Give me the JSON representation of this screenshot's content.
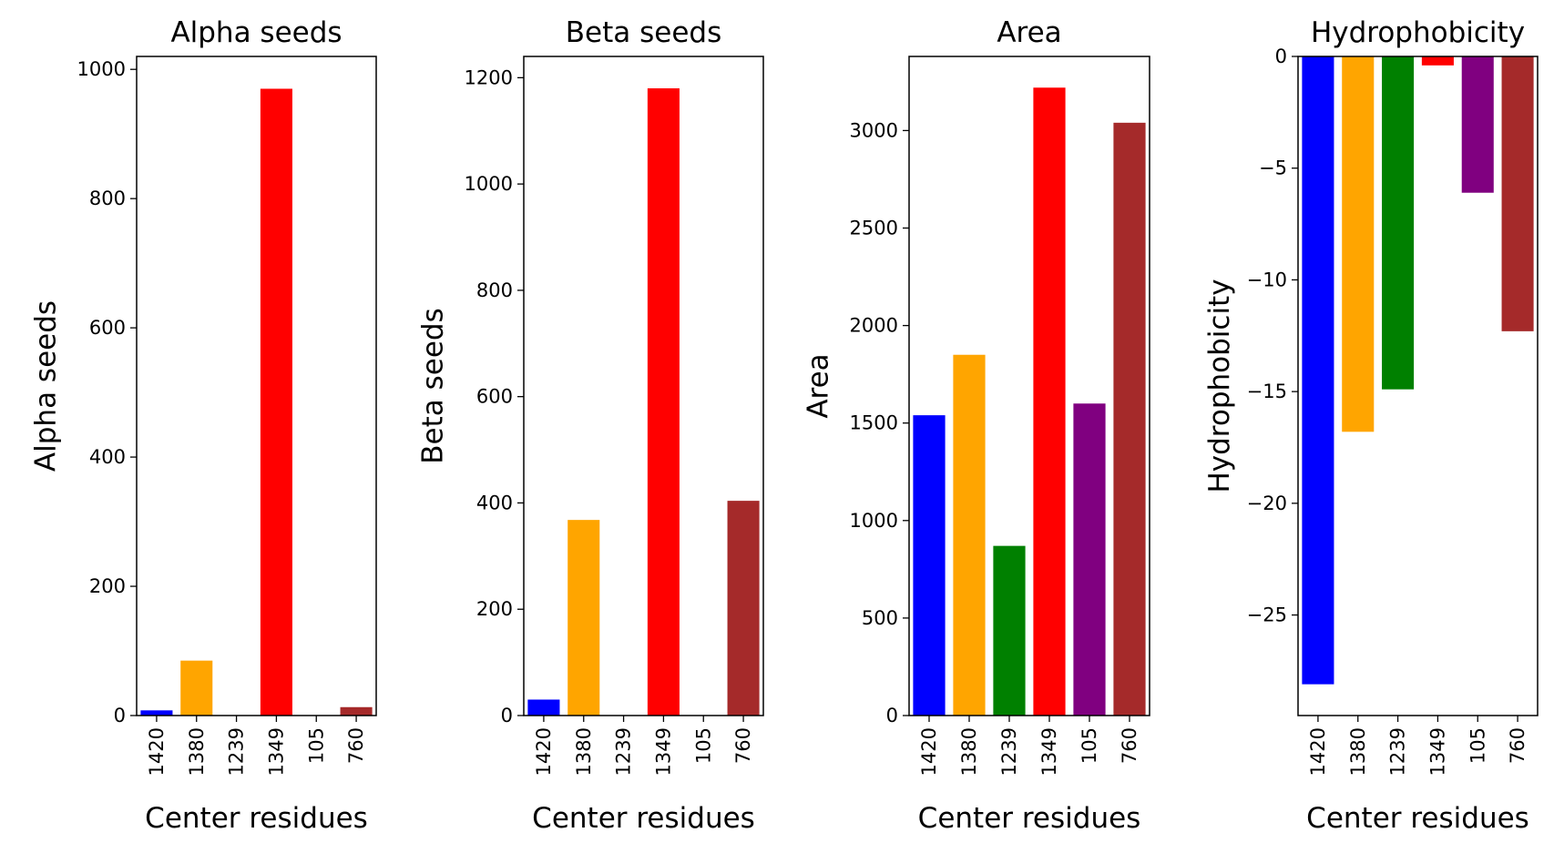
{
  "colors": [
    "#0000ff",
    "#ffa500",
    "#008000",
    "#ff0000",
    "#800080",
    "#a52a2a"
  ],
  "chart_data": [
    {
      "type": "bar",
      "title": "Alpha seeds",
      "xlabel": "Center residues",
      "ylabel": "Alpha seeds",
      "categories": [
        "1420",
        "1380",
        "1239",
        "1349",
        "105",
        "760"
      ],
      "values": [
        8,
        85,
        0,
        970,
        0,
        13
      ],
      "ylim": [
        0,
        1020
      ],
      "yticks": [
        0,
        200,
        400,
        600,
        800,
        1000
      ],
      "ytick_labels": [
        "0",
        "200",
        "400",
        "600",
        "800",
        "1000"
      ],
      "grid": false,
      "legend": "none"
    },
    {
      "type": "bar",
      "title": "Beta seeds",
      "xlabel": "Center residues",
      "ylabel": "Beta seeds",
      "categories": [
        "1420",
        "1380",
        "1239",
        "1349",
        "105",
        "760"
      ],
      "values": [
        30,
        368,
        0,
        1180,
        0,
        404
      ],
      "ylim": [
        0,
        1240
      ],
      "yticks": [
        0,
        200,
        400,
        600,
        800,
        1000,
        1200
      ],
      "ytick_labels": [
        "0",
        "200",
        "400",
        "600",
        "800",
        "1000",
        "1200"
      ],
      "grid": false,
      "legend": "none"
    },
    {
      "type": "bar",
      "title": "Area",
      "xlabel": "Center residues",
      "ylabel": "Area",
      "categories": [
        "1420",
        "1380",
        "1239",
        "1349",
        "105",
        "760"
      ],
      "values": [
        1540,
        1850,
        870,
        3220,
        1600,
        3040
      ],
      "ylim": [
        0,
        3380
      ],
      "yticks": [
        0,
        500,
        1000,
        1500,
        2000,
        2500,
        3000
      ],
      "ytick_labels": [
        "0",
        "500",
        "1000",
        "1500",
        "2000",
        "2500",
        "3000"
      ],
      "grid": false,
      "legend": "none"
    },
    {
      "type": "bar",
      "title": "Hydrophobicity",
      "xlabel": "Center residues",
      "ylabel": "Hydrophobicity",
      "categories": [
        "1420",
        "1380",
        "1239",
        "1349",
        "105",
        "760"
      ],
      "values": [
        -28.1,
        -16.8,
        -14.9,
        -0.4,
        -6.1,
        -12.3
      ],
      "ylim": [
        -29.5,
        0
      ],
      "yticks": [
        0,
        -5,
        -10,
        -15,
        -20,
        -25
      ],
      "ytick_labels": [
        "0",
        "−5",
        "−10",
        "−15",
        "−20",
        "−25"
      ],
      "grid": false,
      "legend": "none"
    }
  ]
}
